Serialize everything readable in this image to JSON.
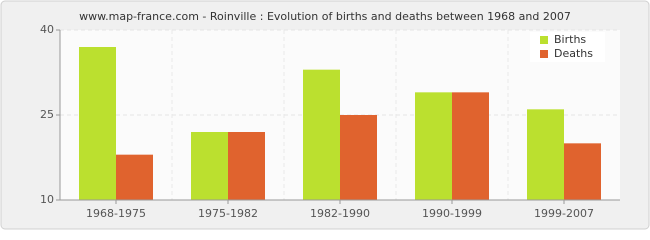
{
  "chart_data": {
    "type": "bar",
    "title": "www.map-france.com - Roinville : Evolution of births and deaths between 1968 and 2007",
    "categories": [
      "1968-1975",
      "1975-1982",
      "1982-1990",
      "1990-1999",
      "1999-2007"
    ],
    "series": [
      {
        "name": "Births",
        "color": "#bbe02f",
        "values": [
          37,
          22,
          33,
          29,
          26
        ]
      },
      {
        "name": "Deaths",
        "color": "#e0632e",
        "values": [
          18,
          22,
          25,
          29,
          20
        ]
      }
    ],
    "ylim": [
      10,
      40
    ],
    "yticks": [
      10,
      25,
      40
    ],
    "grid": true,
    "legend": "top-right"
  }
}
